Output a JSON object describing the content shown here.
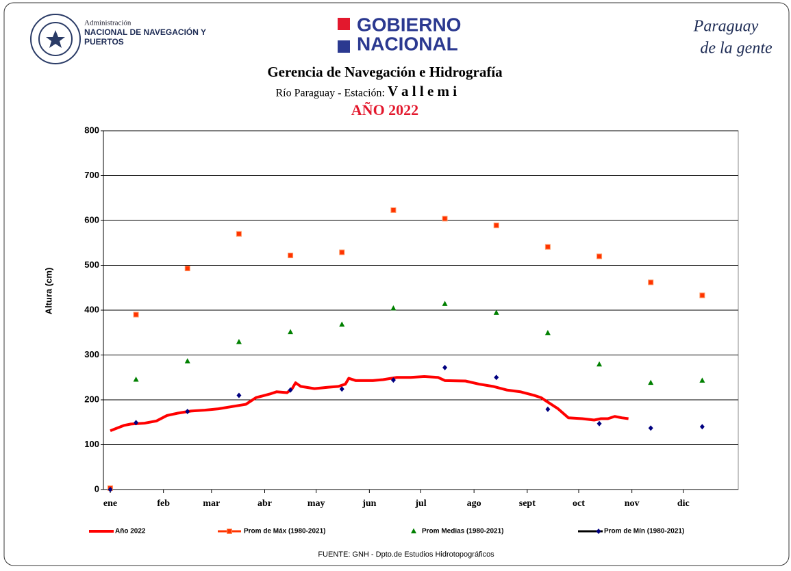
{
  "header": {
    "agency": [
      "Administración",
      "NACIONAL DE NAVEGACIÓN Y",
      "PUERTOS"
    ],
    "government": [
      "GOBIERNO",
      "NACIONAL"
    ],
    "slogan": [
      "Paraguay",
      "de la gente"
    ]
  },
  "chart_data": {
    "type": "scatter",
    "title": "Gerencia de Navegación e Hidrografía",
    "subtitle": "Río Paraguay  -  Estación:",
    "station": "V a l l e m i",
    "year_title": "AÑO 2022",
    "ylabel": "Altura (cm)",
    "source": "FUENTE: GNH - Dpto.de Estudios Hidrotopográficos",
    "xlim": [
      -4,
      366
    ],
    "ylim": [
      0,
      800
    ],
    "yticks": [
      0,
      100,
      200,
      300,
      400,
      500,
      600,
      700,
      800
    ],
    "xticks": [
      {
        "value": 0,
        "label": "ene"
      },
      {
        "value": 31,
        "label": "feb"
      },
      {
        "value": 59,
        "label": "mar"
      },
      {
        "value": 90,
        "label": "abr"
      },
      {
        "value": 120,
        "label": "may"
      },
      {
        "value": 151,
        "label": "jun"
      },
      {
        "value": 181,
        "label": "jul"
      },
      {
        "value": 212,
        "label": "ago"
      },
      {
        "value": 243,
        "label": "sept"
      },
      {
        "value": 273,
        "label": "oct"
      },
      {
        "value": 304,
        "label": "nov"
      },
      {
        "value": 334,
        "label": "dic"
      }
    ],
    "grid": true,
    "series": [
      {
        "name": "Año 2022",
        "color": "#ff0000",
        "marker": "line",
        "x": [
          0,
          4,
          8,
          12,
          20,
          27,
          33,
          39,
          47,
          55,
          63,
          71,
          79,
          85,
          93,
          97,
          103,
          106,
          108,
          111,
          119,
          127,
          133,
          137,
          139,
          143,
          153,
          159,
          167,
          175,
          183,
          191,
          195,
          207,
          215,
          223,
          231,
          239,
          247,
          251,
          255,
          261,
          267,
          275,
          282,
          286,
          290,
          294,
          298,
          302
        ],
        "values": [
          131,
          137,
          143,
          146,
          148,
          153,
          165,
          170,
          175,
          177,
          180,
          185,
          190,
          205,
          213,
          218,
          216,
          225,
          238,
          230,
          225,
          228,
          230,
          235,
          248,
          243,
          243,
          245,
          250,
          250,
          252,
          250,
          243,
          242,
          235,
          230,
          222,
          218,
          210,
          205,
          195,
          180,
          160,
          158,
          155,
          158,
          158,
          163,
          160,
          158
        ]
      },
      {
        "name": "Prom de Máx (1980-2021)",
        "color": "#ff3300",
        "marker": "square",
        "x": [
          0,
          15,
          45,
          75,
          105,
          135,
          165,
          195,
          225,
          255,
          285,
          315,
          345
        ],
        "values": [
          3,
          390,
          493,
          570,
          522,
          529,
          623,
          604,
          589,
          541,
          520,
          462,
          433
        ]
      },
      {
        "name": "Prom Medias (1980-2021)",
        "color": "#008000",
        "marker": "triangle",
        "x": [
          15,
          45,
          75,
          105,
          135,
          165,
          195,
          225,
          255,
          285,
          315,
          345
        ],
        "values": [
          245,
          286,
          329,
          351,
          368,
          404,
          414,
          394,
          349,
          279,
          238,
          243
        ]
      },
      {
        "name": "Prom de Mín  (1980-2021)",
        "color": "#000080",
        "marker": "diamond",
        "x": [
          0,
          15,
          45,
          75,
          105,
          135,
          165,
          195,
          225,
          255,
          285,
          315,
          345
        ],
        "values": [
          0,
          149,
          174,
          210,
          222,
          224,
          244,
          272,
          250,
          179,
          147,
          137,
          140
        ]
      }
    ]
  }
}
